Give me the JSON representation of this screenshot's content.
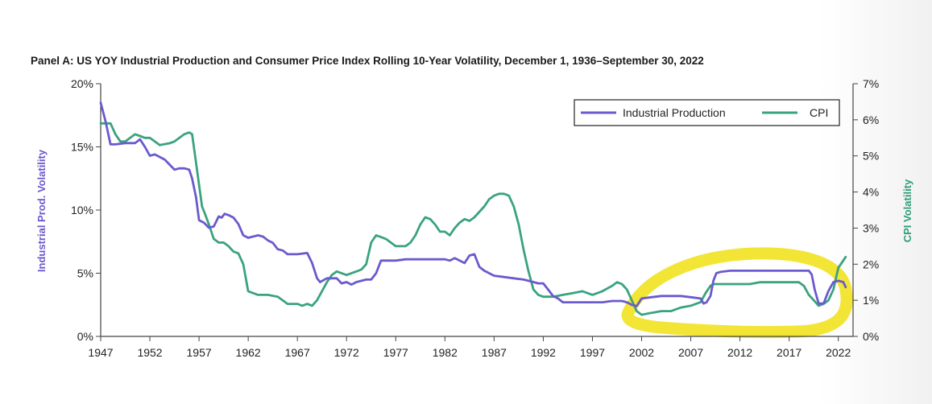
{
  "chart_data": {
    "type": "line",
    "title": "Panel A: US YOY Industrial Production and Consumer Price Index Rolling 10-Year Volatility, December 1, 1936–September 30, 2022",
    "ylabel_left": "Industrial Prod. Volatility",
    "ylabel_right": "CPI Volatility",
    "xlim": [
      1947,
      2023.5
    ],
    "ylim_left": [
      0,
      20
    ],
    "ylim_right": [
      0,
      7
    ],
    "x_ticks": [
      1947,
      1952,
      1957,
      1962,
      1967,
      1972,
      1977,
      1982,
      1987,
      1992,
      1997,
      2002,
      2007,
      2012,
      2017,
      2022
    ],
    "x_tick_labels": [
      "1947",
      "1952",
      "1957",
      "1962",
      "1967",
      "1972",
      "1977",
      "1982",
      "1987",
      "1992",
      "1997",
      "2002",
      "2007",
      "2012",
      "2017",
      "2022"
    ],
    "y_left_ticks": [
      0,
      5,
      10,
      15,
      20
    ],
    "y_left_tick_labels": [
      "0%",
      "5%",
      "10%",
      "15%",
      "20%"
    ],
    "y_right_ticks": [
      0,
      1,
      2,
      3,
      4,
      5,
      6,
      7
    ],
    "y_right_tick_labels": [
      "0%",
      "1%",
      "2%",
      "3%",
      "4%",
      "5%",
      "6%",
      "7%"
    ],
    "legend_position": "top-right",
    "grid": false,
    "series": [
      {
        "name": "Industrial Production",
        "axis": "left",
        "color": "#6a5acd",
        "x": [
          1947.0,
          1947.5,
          1948.0,
          1948.5,
          1949.5,
          1950.5,
          1951.0,
          1951.5,
          1952.0,
          1952.5,
          1953.5,
          1954.0,
          1954.5,
          1955.0,
          1955.5,
          1956.0,
          1956.3,
          1956.7,
          1957.0,
          1957.5,
          1958.0,
          1958.5,
          1959.0,
          1959.3,
          1959.6,
          1960.0,
          1960.5,
          1961.0,
          1961.5,
          1962.0,
          1963.0,
          1963.5,
          1964.0,
          1964.5,
          1965.0,
          1965.5,
          1966.0,
          1967.0,
          1968.0,
          1968.5,
          1969.0,
          1969.3,
          1970.0,
          1971.0,
          1971.5,
          1972.0,
          1972.5,
          1973.0,
          1974.0,
          1974.5,
          1975.0,
          1975.5,
          1976.0,
          1977.0,
          1978.0,
          1979.0,
          1980.0,
          1981.0,
          1982.0,
          1982.5,
          1983.0,
          1983.5,
          1984.0,
          1984.5,
          1985.0,
          1985.5,
          1986.0,
          1987.0,
          1988.0,
          1989.0,
          1990.0,
          1990.5,
          1991.0,
          1991.5,
          1992.0,
          1992.5,
          1993.0,
          1993.5,
          1994.0,
          1995.0,
          1996.0,
          1997.0,
          1998.0,
          1999.0,
          2000.0,
          2000.5,
          2001.0,
          2001.5,
          2002.0,
          2003.0,
          2004.0,
          2005.0,
          2006.0,
          2007.0,
          2008.0,
          2008.3,
          2008.6,
          2009.0,
          2009.3,
          2009.6,
          2010.0,
          2011.0,
          2012.0,
          2013.0,
          2014.0,
          2015.0,
          2016.0,
          2017.0,
          2018.0,
          2019.0,
          2019.3,
          2019.6,
          2020.0,
          2020.5,
          2021.0,
          2021.5,
          2022.0,
          2022.5,
          2022.75
        ],
        "y": [
          18.5,
          17.0,
          15.2,
          15.2,
          15.3,
          15.3,
          15.6,
          15.0,
          14.3,
          14.4,
          14.0,
          13.6,
          13.2,
          13.3,
          13.3,
          13.2,
          12.5,
          11.0,
          9.2,
          9.0,
          8.6,
          8.7,
          9.5,
          9.4,
          9.7,
          9.6,
          9.4,
          8.9,
          8.0,
          7.8,
          8.0,
          7.9,
          7.6,
          7.4,
          6.9,
          6.8,
          6.5,
          6.5,
          6.6,
          5.8,
          4.6,
          4.3,
          4.6,
          4.6,
          4.2,
          4.3,
          4.1,
          4.3,
          4.5,
          4.5,
          5.0,
          6.0,
          6.0,
          6.0,
          6.1,
          6.1,
          6.1,
          6.1,
          6.1,
          6.0,
          6.2,
          6.0,
          5.8,
          6.4,
          6.5,
          5.5,
          5.2,
          4.8,
          4.7,
          4.6,
          4.5,
          4.4,
          4.3,
          4.2,
          4.2,
          3.7,
          3.2,
          3.0,
          2.7,
          2.7,
          2.7,
          2.7,
          2.7,
          2.8,
          2.8,
          2.7,
          2.5,
          2.4,
          3.0,
          3.1,
          3.2,
          3.2,
          3.2,
          3.1,
          3.0,
          2.6,
          2.7,
          3.2,
          4.4,
          5.0,
          5.1,
          5.2,
          5.2,
          5.2,
          5.2,
          5.2,
          5.2,
          5.2,
          5.2,
          5.2,
          4.9,
          3.7,
          2.6,
          2.6,
          3.6,
          4.3,
          4.4,
          4.3,
          3.9
        ]
      },
      {
        "name": "CPI",
        "axis": "right",
        "color": "#3aa37e",
        "x": [
          1947.0,
          1948.0,
          1948.5,
          1949.0,
          1949.5,
          1950.0,
          1950.5,
          1951.0,
          1951.5,
          1952.0,
          1952.5,
          1953.0,
          1954.0,
          1954.5,
          1955.0,
          1955.5,
          1956.0,
          1956.3,
          1956.6,
          1957.0,
          1957.3,
          1957.6,
          1958.0,
          1958.5,
          1959.0,
          1959.5,
          1960.0,
          1960.5,
          1961.0,
          1961.5,
          1962.0,
          1963.0,
          1964.0,
          1965.0,
          1965.5,
          1966.0,
          1967.0,
          1967.5,
          1968.0,
          1968.5,
          1969.0,
          1970.0,
          1970.5,
          1971.0,
          1972.0,
          1973.0,
          1973.5,
          1974.0,
          1974.5,
          1975.0,
          1975.5,
          1976.0,
          1977.0,
          1978.0,
          1978.5,
          1979.0,
          1979.5,
          1980.0,
          1980.5,
          1981.0,
          1981.5,
          1982.0,
          1982.5,
          1983.0,
          1983.5,
          1984.0,
          1984.5,
          1985.0,
          1986.0,
          1986.5,
          1987.0,
          1987.5,
          1988.0,
          1988.5,
          1989.0,
          1989.5,
          1990.0,
          1990.5,
          1991.0,
          1991.5,
          1992.0,
          1993.0,
          1994.0,
          1995.0,
          1996.0,
          1997.0,
          1998.0,
          1999.0,
          1999.5,
          2000.0,
          2000.5,
          2001.0,
          2001.5,
          2002.0,
          2003.0,
          2004.0,
          2005.0,
          2006.0,
          2007.0,
          2008.0,
          2008.5,
          2009.0,
          2009.3,
          2010.0,
          2011.0,
          2012.0,
          2013.0,
          2014.0,
          2015.0,
          2016.0,
          2017.0,
          2018.0,
          2018.5,
          2019.0,
          2019.5,
          2020.0,
          2020.5,
          2021.0,
          2021.5,
          2022.0,
          2022.5,
          2022.75
        ],
        "y": [
          5.9,
          5.9,
          5.6,
          5.4,
          5.4,
          5.5,
          5.6,
          5.55,
          5.5,
          5.5,
          5.4,
          5.3,
          5.35,
          5.4,
          5.5,
          5.6,
          5.65,
          5.6,
          5.0,
          4.2,
          3.6,
          3.4,
          3.1,
          2.7,
          2.6,
          2.6,
          2.5,
          2.35,
          2.3,
          2.0,
          1.25,
          1.15,
          1.15,
          1.1,
          1.0,
          0.9,
          0.9,
          0.85,
          0.9,
          0.85,
          1.0,
          1.5,
          1.7,
          1.8,
          1.7,
          1.8,
          1.85,
          2.0,
          2.6,
          2.8,
          2.75,
          2.7,
          2.5,
          2.5,
          2.6,
          2.8,
          3.1,
          3.3,
          3.25,
          3.1,
          2.9,
          2.9,
          2.8,
          3.0,
          3.15,
          3.25,
          3.2,
          3.3,
          3.6,
          3.8,
          3.9,
          3.95,
          3.95,
          3.9,
          3.6,
          3.1,
          2.4,
          1.8,
          1.3,
          1.15,
          1.1,
          1.1,
          1.15,
          1.2,
          1.25,
          1.15,
          1.25,
          1.4,
          1.5,
          1.45,
          1.3,
          1.0,
          0.7,
          0.6,
          0.65,
          0.7,
          0.7,
          0.8,
          0.85,
          0.95,
          1.2,
          1.4,
          1.45,
          1.45,
          1.45,
          1.45,
          1.45,
          1.5,
          1.5,
          1.5,
          1.5,
          1.5,
          1.4,
          1.15,
          1.0,
          0.85,
          0.9,
          1.0,
          1.3,
          1.9,
          2.1,
          2.2
        ]
      }
    ]
  },
  "annotation": {
    "highlight_color": "#f2e21f"
  }
}
